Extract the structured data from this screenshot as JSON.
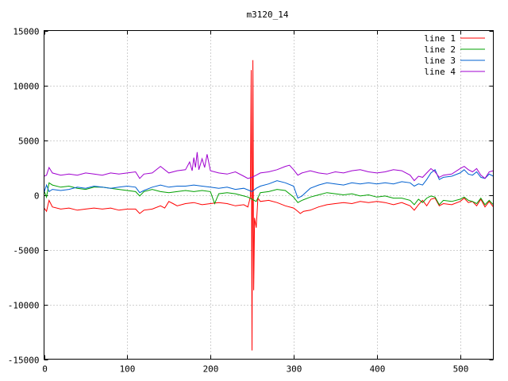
{
  "chart_data": {
    "type": "line",
    "title": "m3120_14",
    "xlabel": "",
    "ylabel": "",
    "xlim": [
      0,
      540
    ],
    "ylim": [
      -15000,
      15000
    ],
    "x_ticks": [
      0,
      100,
      200,
      300,
      400,
      500
    ],
    "y_ticks": [
      -15000,
      -10000,
      -5000,
      0,
      5000,
      10000,
      15000
    ],
    "grid": true,
    "legend_position": "top-right",
    "series": [
      {
        "name": "line 1",
        "color": "#ff0000",
        "points": [
          [
            0,
            -1200
          ],
          [
            3,
            -1500
          ],
          [
            6,
            -500
          ],
          [
            10,
            -1100
          ],
          [
            20,
            -1300
          ],
          [
            30,
            -1200
          ],
          [
            40,
            -1400
          ],
          [
            50,
            -1300
          ],
          [
            60,
            -1200
          ],
          [
            70,
            -1300
          ],
          [
            80,
            -1200
          ],
          [
            90,
            -1400
          ],
          [
            100,
            -1300
          ],
          [
            110,
            -1300
          ],
          [
            115,
            -1700
          ],
          [
            120,
            -1400
          ],
          [
            130,
            -1300
          ],
          [
            140,
            -1000
          ],
          [
            145,
            -1200
          ],
          [
            150,
            -600
          ],
          [
            155,
            -800
          ],
          [
            160,
            -1000
          ],
          [
            170,
            -800
          ],
          [
            180,
            -700
          ],
          [
            190,
            -900
          ],
          [
            200,
            -800
          ],
          [
            210,
            -700
          ],
          [
            220,
            -800
          ],
          [
            230,
            -1000
          ],
          [
            240,
            -900
          ],
          [
            245,
            -1100
          ],
          [
            248,
            -200
          ],
          [
            249,
            11400
          ],
          [
            250,
            -14200
          ],
          [
            251,
            12300
          ],
          [
            252,
            -8700
          ],
          [
            253,
            -2100
          ],
          [
            255,
            -3000
          ],
          [
            257,
            -300
          ],
          [
            260,
            -600
          ],
          [
            270,
            -500
          ],
          [
            280,
            -700
          ],
          [
            290,
            -1000
          ],
          [
            300,
            -1200
          ],
          [
            305,
            -1500
          ],
          [
            308,
            -1700
          ],
          [
            312,
            -1500
          ],
          [
            320,
            -1400
          ],
          [
            330,
            -1100
          ],
          [
            340,
            -900
          ],
          [
            350,
            -800
          ],
          [
            360,
            -700
          ],
          [
            370,
            -800
          ],
          [
            380,
            -600
          ],
          [
            390,
            -700
          ],
          [
            400,
            -600
          ],
          [
            410,
            -700
          ],
          [
            420,
            -900
          ],
          [
            430,
            -700
          ],
          [
            440,
            -1000
          ],
          [
            445,
            -1400
          ],
          [
            450,
            -900
          ],
          [
            455,
            -500
          ],
          [
            460,
            -1000
          ],
          [
            465,
            -400
          ],
          [
            470,
            -300
          ],
          [
            475,
            -1000
          ],
          [
            480,
            -800
          ],
          [
            490,
            -900
          ],
          [
            500,
            -600
          ],
          [
            505,
            -300
          ],
          [
            510,
            -700
          ],
          [
            515,
            -600
          ],
          [
            520,
            -1000
          ],
          [
            525,
            -400
          ],
          [
            530,
            -1100
          ],
          [
            535,
            -600
          ],
          [
            540,
            -1100
          ]
        ]
      },
      {
        "name": "line 2",
        "color": "#00a000",
        "points": [
          [
            0,
            400
          ],
          [
            3,
            -200
          ],
          [
            6,
            1100
          ],
          [
            10,
            900
          ],
          [
            20,
            700
          ],
          [
            30,
            800
          ],
          [
            40,
            600
          ],
          [
            50,
            500
          ],
          [
            60,
            700
          ],
          [
            70,
            700
          ],
          [
            80,
            600
          ],
          [
            90,
            500
          ],
          [
            100,
            400
          ],
          [
            110,
            300
          ],
          [
            115,
            -100
          ],
          [
            120,
            300
          ],
          [
            130,
            500
          ],
          [
            140,
            300
          ],
          [
            150,
            200
          ],
          [
            160,
            300
          ],
          [
            170,
            400
          ],
          [
            180,
            300
          ],
          [
            190,
            400
          ],
          [
            200,
            300
          ],
          [
            205,
            -800
          ],
          [
            210,
            100
          ],
          [
            220,
            200
          ],
          [
            230,
            100
          ],
          [
            240,
            -100
          ],
          [
            245,
            -200
          ],
          [
            250,
            -400
          ],
          [
            255,
            -600
          ],
          [
            260,
            200
          ],
          [
            270,
            300
          ],
          [
            280,
            500
          ],
          [
            290,
            400
          ],
          [
            300,
            -200
          ],
          [
            305,
            -700
          ],
          [
            310,
            -500
          ],
          [
            320,
            -200
          ],
          [
            330,
            0
          ],
          [
            340,
            200
          ],
          [
            350,
            100
          ],
          [
            360,
            0
          ],
          [
            370,
            100
          ],
          [
            380,
            -100
          ],
          [
            390,
            0
          ],
          [
            400,
            -200
          ],
          [
            410,
            -100
          ],
          [
            420,
            -300
          ],
          [
            430,
            -300
          ],
          [
            440,
            -500
          ],
          [
            445,
            -900
          ],
          [
            450,
            -400
          ],
          [
            455,
            -700
          ],
          [
            460,
            -300
          ],
          [
            465,
            -100
          ],
          [
            470,
            -200
          ],
          [
            475,
            -900
          ],
          [
            480,
            -500
          ],
          [
            490,
            -600
          ],
          [
            500,
            -400
          ],
          [
            505,
            -200
          ],
          [
            510,
            -500
          ],
          [
            515,
            -600
          ],
          [
            520,
            -800
          ],
          [
            525,
            -300
          ],
          [
            530,
            -900
          ],
          [
            535,
            -500
          ],
          [
            540,
            -900
          ]
        ]
      },
      {
        "name": "line 3",
        "color": "#0060d0",
        "points": [
          [
            0,
            200
          ],
          [
            3,
            900
          ],
          [
            6,
            300
          ],
          [
            10,
            500
          ],
          [
            20,
            400
          ],
          [
            30,
            500
          ],
          [
            40,
            700
          ],
          [
            50,
            600
          ],
          [
            60,
            800
          ],
          [
            70,
            700
          ],
          [
            80,
            600
          ],
          [
            90,
            700
          ],
          [
            100,
            800
          ],
          [
            110,
            700
          ],
          [
            115,
            200
          ],
          [
            120,
            400
          ],
          [
            130,
            700
          ],
          [
            140,
            900
          ],
          [
            150,
            700
          ],
          [
            160,
            800
          ],
          [
            170,
            800
          ],
          [
            180,
            900
          ],
          [
            190,
            800
          ],
          [
            200,
            700
          ],
          [
            210,
            600
          ],
          [
            220,
            700
          ],
          [
            230,
            500
          ],
          [
            240,
            600
          ],
          [
            250,
            300
          ],
          [
            255,
            600
          ],
          [
            260,
            800
          ],
          [
            270,
            1000
          ],
          [
            280,
            1300
          ],
          [
            290,
            1100
          ],
          [
            300,
            800
          ],
          [
            305,
            -300
          ],
          [
            310,
            -100
          ],
          [
            320,
            600
          ],
          [
            330,
            900
          ],
          [
            340,
            1100
          ],
          [
            350,
            1000
          ],
          [
            360,
            900
          ],
          [
            370,
            1100
          ],
          [
            380,
            1000
          ],
          [
            390,
            1100
          ],
          [
            400,
            1000
          ],
          [
            410,
            1100
          ],
          [
            420,
            1000
          ],
          [
            430,
            1200
          ],
          [
            440,
            1100
          ],
          [
            445,
            800
          ],
          [
            450,
            1000
          ],
          [
            455,
            900
          ],
          [
            460,
            1400
          ],
          [
            465,
            2000
          ],
          [
            470,
            2300
          ],
          [
            475,
            1400
          ],
          [
            480,
            1600
          ],
          [
            490,
            1700
          ],
          [
            500,
            2000
          ],
          [
            505,
            2300
          ],
          [
            510,
            1900
          ],
          [
            515,
            1800
          ],
          [
            520,
            2100
          ],
          [
            525,
            1600
          ],
          [
            530,
            1500
          ],
          [
            535,
            1900
          ],
          [
            540,
            1700
          ]
        ]
      },
      {
        "name": "line 4",
        "color": "#a000d0",
        "points": [
          [
            0,
            1700
          ],
          [
            3,
            1800
          ],
          [
            6,
            2500
          ],
          [
            10,
            2000
          ],
          [
            20,
            1800
          ],
          [
            30,
            1900
          ],
          [
            40,
            1800
          ],
          [
            50,
            2000
          ],
          [
            60,
            1900
          ],
          [
            70,
            1800
          ],
          [
            80,
            2000
          ],
          [
            90,
            1900
          ],
          [
            100,
            2000
          ],
          [
            110,
            2100
          ],
          [
            115,
            1500
          ],
          [
            120,
            1900
          ],
          [
            130,
            2000
          ],
          [
            140,
            2600
          ],
          [
            150,
            2000
          ],
          [
            160,
            2200
          ],
          [
            170,
            2300
          ],
          [
            175,
            3000
          ],
          [
            178,
            2200
          ],
          [
            180,
            3400
          ],
          [
            182,
            2500
          ],
          [
            184,
            3900
          ],
          [
            186,
            2300
          ],
          [
            190,
            3300
          ],
          [
            193,
            2500
          ],
          [
            196,
            3700
          ],
          [
            200,
            2200
          ],
          [
            210,
            2000
          ],
          [
            220,
            1900
          ],
          [
            230,
            2100
          ],
          [
            240,
            1700
          ],
          [
            245,
            1500
          ],
          [
            250,
            1600
          ],
          [
            255,
            1800
          ],
          [
            260,
            2000
          ],
          [
            270,
            2100
          ],
          [
            280,
            2300
          ],
          [
            290,
            2600
          ],
          [
            295,
            2700
          ],
          [
            300,
            2300
          ],
          [
            305,
            1800
          ],
          [
            310,
            2000
          ],
          [
            320,
            2200
          ],
          [
            330,
            2000
          ],
          [
            340,
            1900
          ],
          [
            350,
            2100
          ],
          [
            360,
            2000
          ],
          [
            370,
            2200
          ],
          [
            380,
            2300
          ],
          [
            390,
            2100
          ],
          [
            400,
            2000
          ],
          [
            410,
            2100
          ],
          [
            420,
            2300
          ],
          [
            430,
            2200
          ],
          [
            440,
            1800
          ],
          [
            445,
            1300
          ],
          [
            450,
            1700
          ],
          [
            455,
            1600
          ],
          [
            460,
            2000
          ],
          [
            465,
            2400
          ],
          [
            470,
            2100
          ],
          [
            475,
            1600
          ],
          [
            480,
            1800
          ],
          [
            490,
            1900
          ],
          [
            500,
            2400
          ],
          [
            505,
            2600
          ],
          [
            510,
            2300
          ],
          [
            515,
            2100
          ],
          [
            520,
            2400
          ],
          [
            525,
            1800
          ],
          [
            530,
            1500
          ],
          [
            535,
            2100
          ],
          [
            540,
            2200
          ]
        ]
      }
    ]
  }
}
